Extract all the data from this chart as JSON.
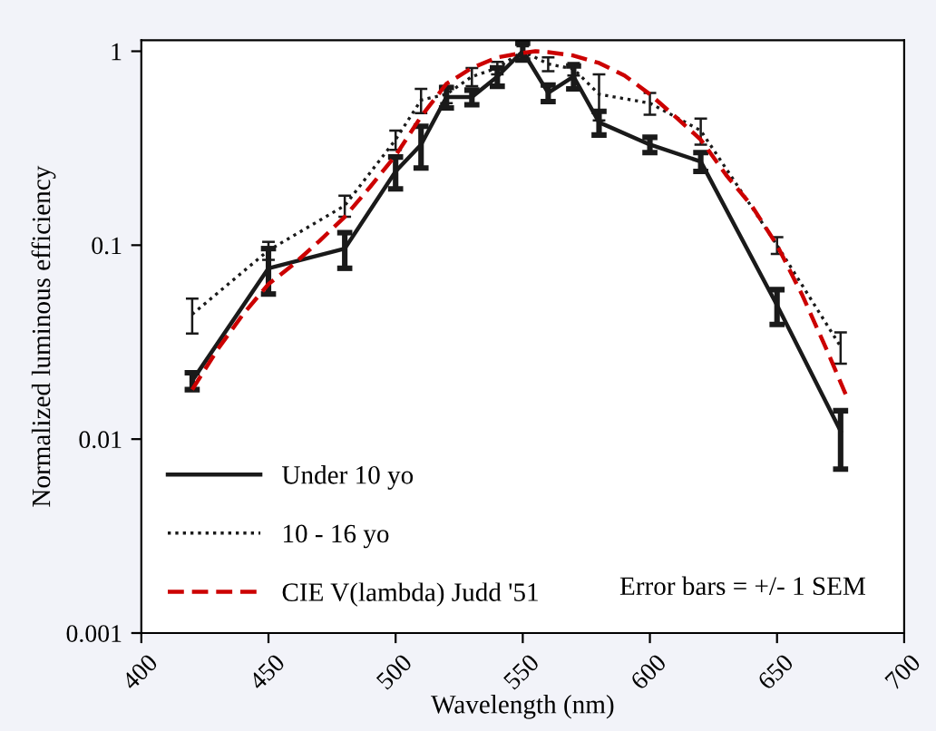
{
  "chart_data": {
    "type": "line",
    "xlabel": "Wavelength (nm)",
    "ylabel": "Normalized luminous efficiency",
    "log": "y",
    "xlim": [
      400,
      700
    ],
    "xticks": [
      400,
      450,
      500,
      550,
      600,
      650,
      700
    ],
    "ylim": [
      0.001,
      1.14
    ],
    "yticks": [
      0.001,
      0.01,
      0.1,
      1
    ],
    "grid": false,
    "legend": "bottom left",
    "marker": "none",
    "annotations": [
      "Error bars = +/- 1 SEM"
    ],
    "series": [
      {
        "name": "Under 10 yo",
        "color": "#1a1a1a",
        "line_style": "solid",
        "x": [
          420,
          450,
          480,
          500,
          510,
          520,
          530,
          540,
          550,
          560,
          570,
          580,
          600,
          620,
          650,
          675
        ],
        "values": [
          0.02,
          0.076,
          0.096,
          0.24,
          0.33,
          0.58,
          0.58,
          0.74,
          1.0,
          0.61,
          0.74,
          0.43,
          0.33,
          0.27,
          0.049,
          0.011
        ],
        "errors": [
          0.002,
          0.02,
          0.02,
          0.045,
          0.08,
          0.07,
          0.05,
          0.08,
          0.1,
          0.06,
          0.1,
          0.06,
          0.03,
          0.03,
          0.01,
          [
            0.007,
            0.014
          ]
        ]
      },
      {
        "name": "10 - 16 yo",
        "color": "#1a1a1a",
        "line_style": "dotted",
        "x": [
          420,
          450,
          480,
          500,
          510,
          520,
          530,
          540,
          550,
          560,
          570,
          580,
          600,
          620,
          650,
          675
        ],
        "values": [
          0.044,
          0.094,
          0.16,
          0.35,
          0.56,
          0.6,
          0.74,
          0.82,
          1.0,
          0.86,
          0.81,
          0.6,
          0.54,
          0.39,
          0.1,
          0.03
        ],
        "errors": [
          0.009,
          0.01,
          0.02,
          0.04,
          0.08,
          0.06,
          0.08,
          0.06,
          0.06,
          0.07,
          0.06,
          0.16,
          0.07,
          0.06,
          0.01,
          0.0055
        ]
      },
      {
        "name": "CIE V(lambda) Judd '51",
        "color": "#cc0000",
        "line_style": "dashed",
        "x": [
          420,
          430,
          440,
          450,
          460,
          470,
          480,
          490,
          500,
          510,
          520,
          530,
          540,
          550,
          555,
          560,
          570,
          580,
          590,
          600,
          610,
          620,
          630,
          640,
          650,
          660,
          670,
          677
        ],
        "values": [
          0.018,
          0.029,
          0.044,
          0.063,
          0.08,
          0.105,
          0.14,
          0.2,
          0.29,
          0.46,
          0.68,
          0.82,
          0.93,
          0.98,
          1.0,
          0.99,
          0.95,
          0.87,
          0.75,
          0.6,
          0.46,
          0.35,
          0.23,
          0.16,
          0.1,
          0.055,
          0.028,
          0.017
        ]
      }
    ]
  }
}
